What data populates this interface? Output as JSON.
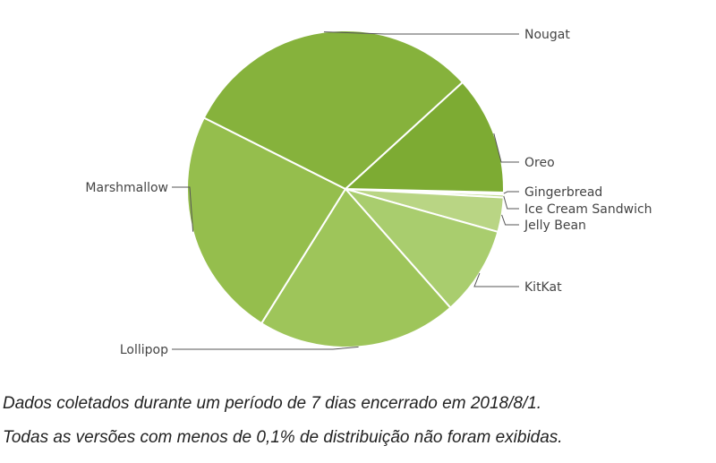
{
  "chart_data": {
    "type": "pie",
    "slices": [
      {
        "label": "Gingerbread",
        "value": 0.2,
        "color": "#c6de9a"
      },
      {
        "label": "Ice Cream Sandwich",
        "value": 0.3,
        "color": "#c1db92"
      },
      {
        "label": "Jelly Bean",
        "value": 3.5,
        "color": "#b9d584"
      },
      {
        "label": "KitKat",
        "value": 9.1,
        "color": "#a9cd6e"
      },
      {
        "label": "Lollipop",
        "value": 20.4,
        "color": "#9ec55a"
      },
      {
        "label": "Marshmallow",
        "value": 23.5,
        "color": "#95be4d"
      },
      {
        "label": "Nougat",
        "value": 30.8,
        "color": "#86b23c"
      },
      {
        "label": "Oreo",
        "value": 12.1,
        "color": "#7dab33"
      }
    ]
  },
  "caption": {
    "line1": "Dados coletados durante um período de 7 dias encerrado em 2018/8/1.",
    "line2": "Todas as versões com menos de 0,1% de distribuição não foram exibidas."
  }
}
